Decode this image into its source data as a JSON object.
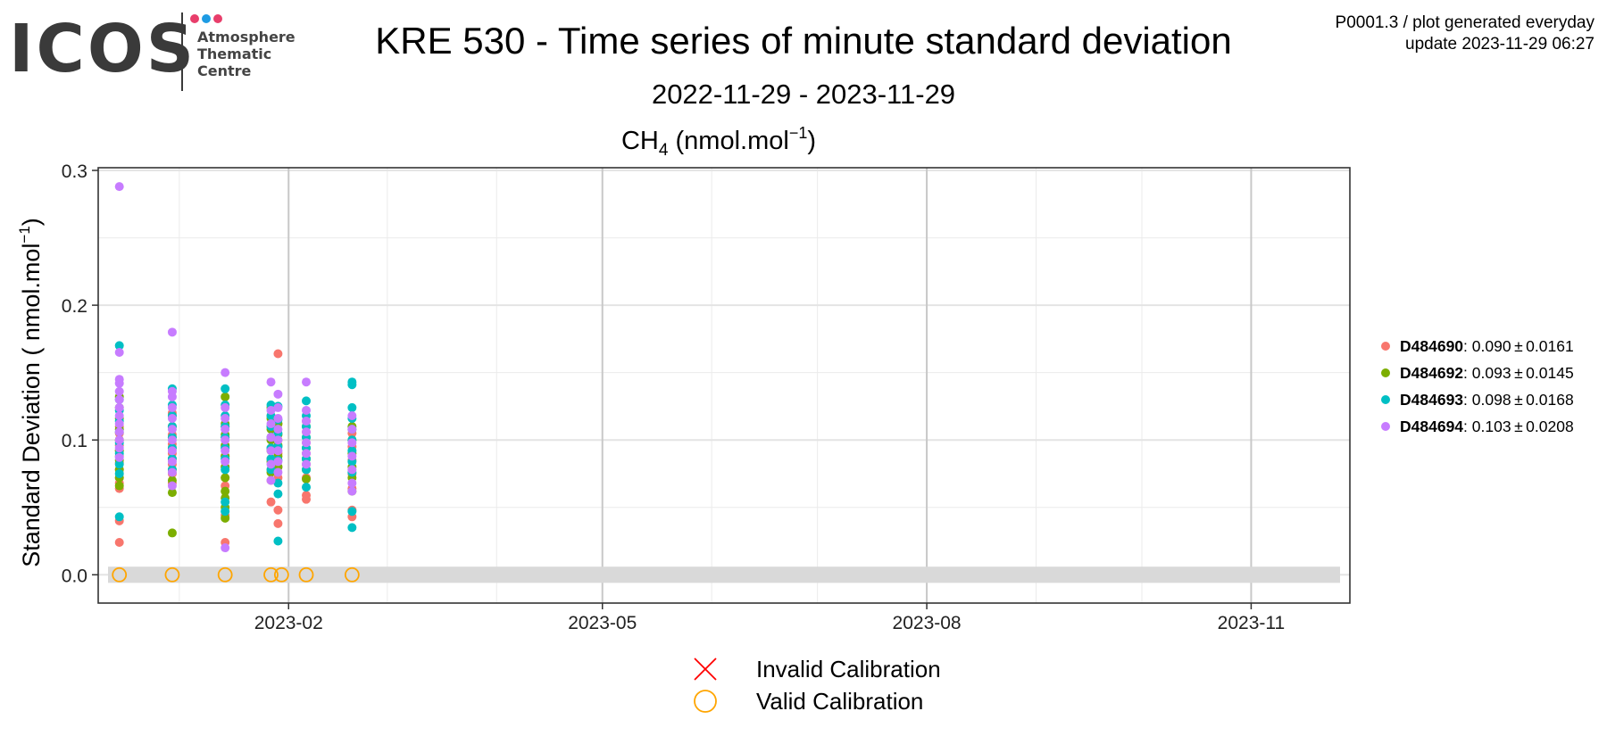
{
  "logo": {
    "brand": "ICOS",
    "line1": "Atmosphere",
    "line2": "Thematic",
    "line3": "Centre",
    "dot_colors": [
      "#e83e6b",
      "#1e9be3",
      "#e83e6b"
    ]
  },
  "header": {
    "title": "KRE 530 - Time series of minute standard deviation",
    "date_range": "2022-11-29 - 2023-11-29",
    "meta_line1": "P0001.3 / plot generated everyday",
    "meta_line2": "update  2023-11-29 06:27"
  },
  "chart_data": {
    "type": "scatter",
    "title_main": "CH",
    "title_sub": "4",
    "title_unit": " (nmol.mol",
    "title_sup": "−1",
    "title_close": ")",
    "ylabel": "Standard Deviation ( nmol.mol",
    "ylabel_sup": "−1",
    "ylabel_close": ")",
    "ylim": [
      -0.021,
      0.302
    ],
    "xlim": [
      "2022-12-09",
      "2023-11-29"
    ],
    "grid": true,
    "legend_position": "right",
    "y_ticks": [
      0.0,
      0.1,
      0.2,
      0.3
    ],
    "y_tick_labels": [
      "0.0",
      "0.1",
      "0.2",
      "0.3"
    ],
    "x_ticks": [
      "2023-02-01",
      "2023-05-01",
      "2023-08-01",
      "2023-11-01"
    ],
    "x_tick_labels": [
      "2023-02",
      "2023-05",
      "2023-08",
      "2023-11"
    ],
    "x_minor_ticks": [
      "2022-12-16",
      "2023-03-16",
      "2023-06-16",
      "2023-09-16"
    ],
    "series": [
      {
        "name": "D484690",
        "label_bold": "D484690",
        "stats": ": 0.090 ± 0.0161",
        "color": "#F8766D",
        "clusters": [
          {
            "date": "2022-12-15",
            "values": [
              0.024,
              0.04,
              0.064,
              0.068,
              0.072,
              0.078,
              0.083,
              0.088,
              0.092,
              0.096,
              0.1,
              0.105,
              0.11
            ]
          },
          {
            "date": "2022-12-30",
            "values": [
              0.068,
              0.075,
              0.082,
              0.09,
              0.097,
              0.104,
              0.11,
              0.12
            ]
          },
          {
            "date": "2023-01-14",
            "values": [
              0.024,
              0.044,
              0.066,
              0.072,
              0.08,
              0.088,
              0.095,
              0.102,
              0.11
            ]
          },
          {
            "date": "2023-01-27",
            "values": [
              0.054,
              0.07,
              0.078,
              0.086,
              0.094,
              0.102,
              0.11,
              0.118
            ]
          },
          {
            "date": "2023-01-29",
            "values": [
              0.038,
              0.048,
              0.072,
              0.08,
              0.09,
              0.1,
              0.112,
              0.164
            ]
          },
          {
            "date": "2023-02-06",
            "values": [
              0.056,
              0.059,
              0.072,
              0.082,
              0.09,
              0.098,
              0.106,
              0.114
            ]
          },
          {
            "date": "2023-02-19",
            "values": [
              0.043,
              0.048,
              0.064,
              0.075,
              0.085,
              0.095,
              0.105
            ]
          }
        ]
      },
      {
        "name": "D484692",
        "label_bold": "D484692",
        "stats": ": 0.093 ± 0.0145",
        "color": "#7CAE00",
        "clusters": [
          {
            "date": "2022-12-15",
            "values": [
              0.066,
              0.072,
              0.078,
              0.085,
              0.092,
              0.1,
              0.108,
              0.116,
              0.124,
              0.132
            ]
          },
          {
            "date": "2022-12-30",
            "values": [
              0.031,
              0.061,
              0.07,
              0.078,
              0.086,
              0.094,
              0.102,
              0.11,
              0.118
            ]
          },
          {
            "date": "2023-01-14",
            "values": [
              0.042,
              0.05,
              0.057,
              0.062,
              0.072,
              0.08,
              0.088,
              0.096,
              0.104,
              0.112,
              0.132
            ]
          },
          {
            "date": "2023-01-27",
            "values": [
              0.076,
              0.084,
              0.092,
              0.1,
              0.108,
              0.116,
              0.124
            ]
          },
          {
            "date": "2023-01-29",
            "values": [
              0.08,
              0.088,
              0.096,
              0.104,
              0.112
            ]
          },
          {
            "date": "2023-02-06",
            "values": [
              0.071,
              0.078,
              0.086,
              0.094,
              0.102,
              0.11
            ]
          },
          {
            "date": "2023-02-19",
            "values": [
              0.062,
              0.072,
              0.08,
              0.09,
              0.1,
              0.11
            ]
          }
        ]
      },
      {
        "name": "D484693",
        "label_bold": "D484693",
        "stats": ": 0.098 ± 0.0168",
        "color": "#00BFC4",
        "clusters": [
          {
            "date": "2022-12-15",
            "values": [
              0.043,
              0.075,
              0.082,
              0.09,
              0.098,
              0.106,
              0.114,
              0.122,
              0.13,
              0.17
            ]
          },
          {
            "date": "2022-12-30",
            "values": [
              0.078,
              0.086,
              0.094,
              0.102,
              0.11,
              0.118,
              0.126,
              0.138
            ]
          },
          {
            "date": "2023-01-14",
            "values": [
              0.047,
              0.054,
              0.078,
              0.086,
              0.094,
              0.102,
              0.11,
              0.118,
              0.126,
              0.138
            ]
          },
          {
            "date": "2023-01-27",
            "values": [
              0.078,
              0.086,
              0.094,
              0.102,
              0.11,
              0.118,
              0.126
            ]
          },
          {
            "date": "2023-01-29",
            "values": [
              0.025,
              0.06,
              0.068,
              0.085,
              0.095,
              0.105,
              0.115,
              0.125
            ]
          },
          {
            "date": "2023-02-06",
            "values": [
              0.065,
              0.078,
              0.086,
              0.094,
              0.102,
              0.11,
              0.118,
              0.129
            ]
          },
          {
            "date": "2023-02-19",
            "values": [
              0.035,
              0.047,
              0.076,
              0.084,
              0.092,
              0.1,
              0.108,
              0.116,
              0.124,
              0.141,
              0.143
            ]
          }
        ]
      },
      {
        "name": "D484694",
        "label_bold": "D484694",
        "stats": ": 0.103 ± 0.0208",
        "color": "#C77CFF",
        "clusters": [
          {
            "date": "2022-12-15",
            "values": [
              0.087,
              0.094,
              0.1,
              0.106,
              0.112,
              0.118,
              0.124,
              0.13,
              0.136,
              0.142,
              0.145,
              0.165,
              0.288
            ]
          },
          {
            "date": "2022-12-30",
            "values": [
              0.066,
              0.076,
              0.084,
              0.092,
              0.1,
              0.108,
              0.116,
              0.124,
              0.132,
              0.136,
              0.18
            ]
          },
          {
            "date": "2023-01-14",
            "values": [
              0.02,
              0.084,
              0.092,
              0.1,
              0.108,
              0.116,
              0.124,
              0.15
            ]
          },
          {
            "date": "2023-01-27",
            "values": [
              0.07,
              0.082,
              0.092,
              0.102,
              0.112,
              0.122,
              0.143
            ]
          },
          {
            "date": "2023-01-29",
            "values": [
              0.076,
              0.084,
              0.092,
              0.1,
              0.108,
              0.116,
              0.124,
              0.134
            ]
          },
          {
            "date": "2023-02-06",
            "values": [
              0.082,
              0.09,
              0.098,
              0.106,
              0.114,
              0.122,
              0.143
            ]
          },
          {
            "date": "2023-02-19",
            "values": [
              0.062,
              0.068,
              0.078,
              0.088,
              0.098,
              0.108,
              0.118
            ]
          }
        ]
      }
    ],
    "calibration_band": [
      -0.006,
      0.006
    ],
    "valid_calibrations": {
      "dates": [
        "2022-12-15",
        "2022-12-30",
        "2023-01-14",
        "2023-01-27",
        "2023-01-30",
        "2023-02-06",
        "2023-02-19"
      ],
      "value": 0.0
    },
    "calibration_legend": [
      {
        "label": "Invalid Calibration",
        "symbol": "cross",
        "color": "#ff0000"
      },
      {
        "label": "Valid Calibration",
        "symbol": "circle",
        "color": "#ffa500"
      }
    ]
  }
}
